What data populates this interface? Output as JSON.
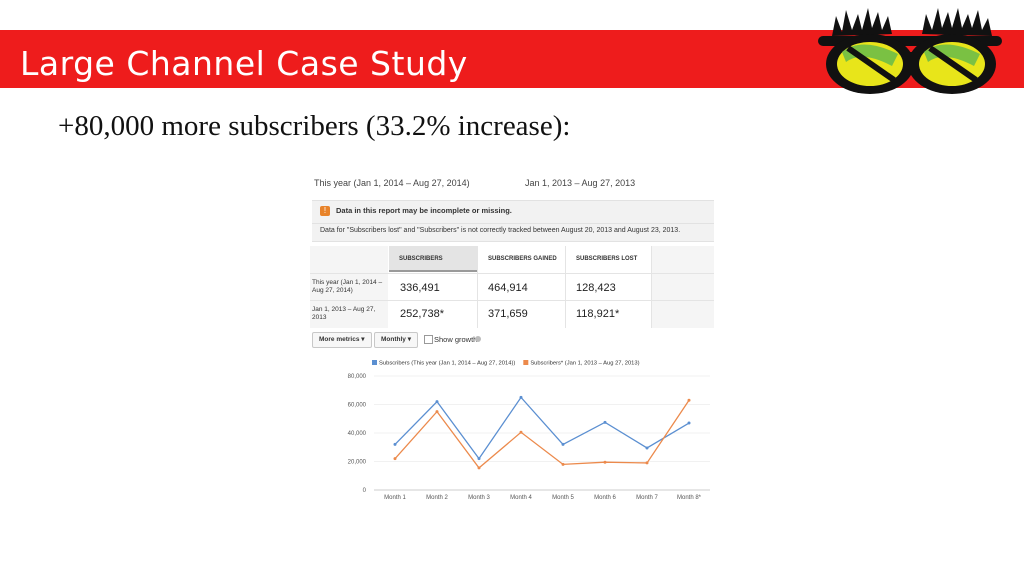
{
  "slide": {
    "title": "Large Channel Case Study",
    "headline": "+80,000 more subscribers (33.2% increase):"
  },
  "report": {
    "period_this_year": "This year (Jan 1, 2014 – Aug 27, 2014)",
    "period_last_year": "Jan 1, 2013 – Aug 27, 2013",
    "warning_title": "Data in this report may be incomplete or missing.",
    "warning_text": "Data for \"Subscribers lost\" and \"Subscribers\" is not correctly tracked between August 20, 2013 and August 23, 2013.",
    "columns": [
      "SUBSCRIBERS",
      "SUBSCRIBERS GAINED",
      "SUBSCRIBERS LOST"
    ],
    "rows": [
      {
        "label": "This year (Jan 1, 2014 – Aug 27, 2014)",
        "values": [
          "336,491",
          "464,914",
          "128,423"
        ]
      },
      {
        "label": "Jan 1, 2013 – Aug 27, 2013",
        "values": [
          "252,738*",
          "371,659",
          "118,921*"
        ]
      }
    ],
    "controls": {
      "more_metrics": "More metrics",
      "monthly": "Monthly",
      "show_growth": "Show growth"
    }
  },
  "colors": {
    "banner": "#ee1c1c",
    "series_this_year": "#5b8fd1",
    "series_last_year": "#ec8a4c"
  },
  "chart_data": {
    "type": "line",
    "categories": [
      "Month 1",
      "Month 2",
      "Month 3",
      "Month 4",
      "Month 5",
      "Month 6",
      "Month 7",
      "Month 8*"
    ],
    "series": [
      {
        "name": "Subscribers (This year (Jan 1, 2014 – Aug 27, 2014))",
        "values": [
          32000,
          62000,
          22000,
          65000,
          32000,
          47500,
          29500,
          47000
        ]
      },
      {
        "name": "Subscribers* (Jan 1, 2013 – Aug 27, 2013)",
        "values": [
          22000,
          55000,
          15500,
          40500,
          18000,
          19500,
          19000,
          63000
        ]
      }
    ],
    "yticks": [
      "0",
      "20,000",
      "40,000",
      "60,000",
      "80,000"
    ],
    "ylim": [
      0,
      80000
    ],
    "legend": "top",
    "grid": true
  }
}
